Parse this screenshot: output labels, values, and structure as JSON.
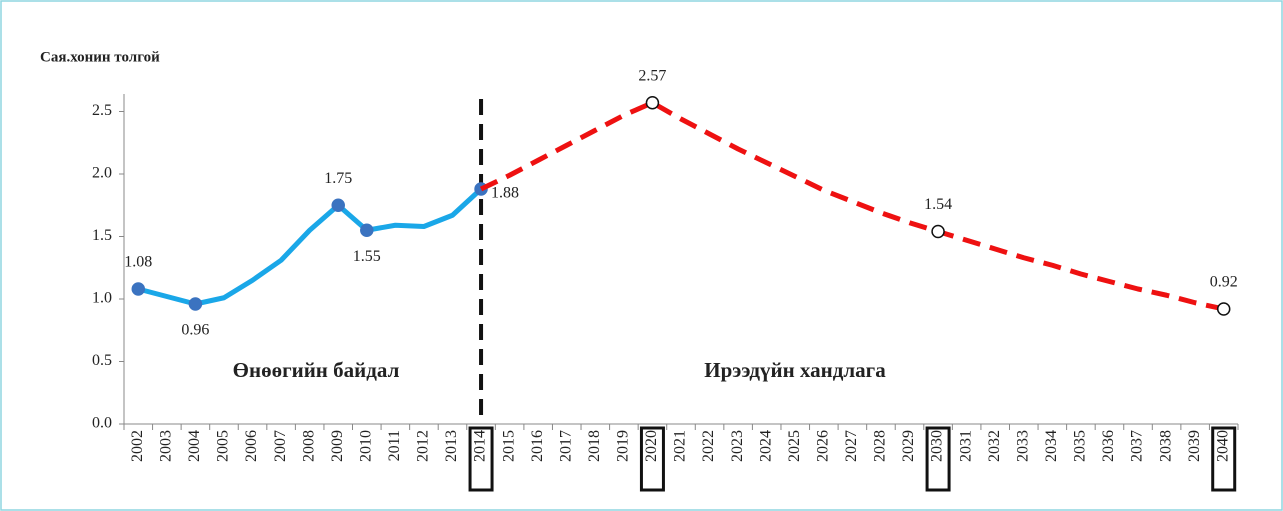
{
  "chart_data": {
    "type": "line",
    "ylabel": "Сая.хонин толгой",
    "categories": [
      "2002",
      "2003",
      "2004",
      "2005",
      "2006",
      "2007",
      "2008",
      "2009",
      "2010",
      "2011",
      "2012",
      "2013",
      "2014",
      "2015",
      "2016",
      "2017",
      "2018",
      "2019",
      "2020",
      "2021",
      "2022",
      "2023",
      "2024",
      "2025",
      "2026",
      "2027",
      "2028",
      "2029",
      "2030",
      "2031",
      "2032",
      "2033",
      "2034",
      "2035",
      "2036",
      "2037",
      "2038",
      "2039",
      "2040"
    ],
    "series": [
      {
        "color": "#1aa7e8",
        "dashed": false,
        "marker": "filled",
        "values": [
          1.08,
          1.02,
          0.96,
          1.01,
          1.15,
          1.31,
          1.55,
          1.75,
          1.55,
          1.59,
          1.58,
          1.67,
          1.88,
          null,
          null,
          null,
          null,
          null,
          null,
          null,
          null,
          null,
          null,
          null,
          null,
          null,
          null,
          null,
          null,
          null,
          null,
          null,
          null,
          null,
          null,
          null,
          null,
          null,
          null
        ],
        "value_labels": [
          "1.08",
          null,
          "0.96",
          null,
          null,
          null,
          null,
          "1.75",
          "1.55",
          null,
          null,
          null,
          "1.88",
          null,
          null,
          null,
          null,
          null,
          null,
          null,
          null,
          null,
          null,
          null,
          null,
          null,
          null,
          null,
          null,
          null,
          null,
          null,
          null,
          null,
          null,
          null,
          null,
          null,
          null
        ]
      },
      {
        "color": "#ee1111",
        "dashed": true,
        "marker": "hollow",
        "values": [
          null,
          null,
          null,
          null,
          null,
          null,
          null,
          null,
          null,
          null,
          null,
          null,
          1.88,
          1.99,
          2.11,
          2.23,
          2.35,
          2.47,
          2.57,
          2.44,
          2.32,
          2.2,
          2.09,
          1.98,
          1.87,
          1.78,
          1.69,
          1.61,
          1.54,
          1.47,
          1.4,
          1.33,
          1.27,
          1.2,
          1.14,
          1.08,
          1.03,
          0.97,
          0.92
        ],
        "value_labels": [
          null,
          null,
          null,
          null,
          null,
          null,
          null,
          null,
          null,
          null,
          null,
          null,
          null,
          null,
          null,
          null,
          null,
          null,
          "2.57",
          null,
          null,
          null,
          null,
          null,
          null,
          null,
          null,
          null,
          "1.54",
          null,
          null,
          null,
          null,
          null,
          null,
          null,
          null,
          null,
          "0.92"
        ]
      }
    ],
    "ylim": [
      0,
      2.6
    ],
    "yticks": [
      {
        "value": 0,
        "label": "0.0"
      },
      0.5,
      {
        "value": 1,
        "label": "1.0"
      },
      1.5,
      {
        "value": 2,
        "label": "2.0"
      },
      2.5
    ],
    "divider_index": 12,
    "boxed_category_indices": [
      12,
      18,
      28,
      38
    ],
    "annotations": [
      "Өнөөгийн байдал",
      "Ирээдүйн хандлага"
    ]
  }
}
